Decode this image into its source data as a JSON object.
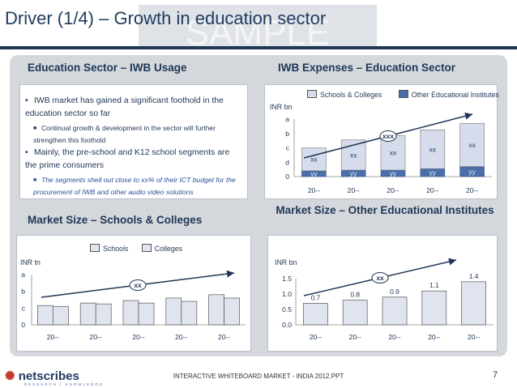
{
  "slide": {
    "title": "Driver (1/4) – Growth in education sector",
    "watermark": "SAMPLE",
    "footer": "INTERACTIVE WHITEBOARD MARKET - INDIA 2012.PPT",
    "page": "7",
    "logo": "netscribes",
    "logo_tagline": "RESEARCH | KNOWLEDGE"
  },
  "sections": {
    "usage_title": "Education Sector – IWB Usage",
    "expenses_title": "IWB Expenses – Education Sector",
    "schools_title": "Market Size – Schools & Colleges",
    "other_title": "Market Size – Other Educational Institutes"
  },
  "bullets": [
    {
      "level": 1,
      "text": "IWB market has gained a significant foothold in the education sector so far"
    },
    {
      "level": 2,
      "text": "Continual growth & development in the sector will further strengthen this foothold"
    },
    {
      "level": 1,
      "text": "Mainly, the pre-school and K12 school segments are the prime consumers"
    },
    {
      "level": 2,
      "text": "The segments shell out close to xx% of their ICT budget for the procurement of IWB and other audio video solutions"
    }
  ],
  "chart_data": [
    {
      "type": "bar",
      "stacked": true,
      "unit": "INR bn",
      "categories": [
        "20--",
        "20--",
        "20--",
        "20--",
        "20--"
      ],
      "y_ticks": [
        "0",
        "d",
        "c",
        "b",
        "a"
      ],
      "series": [
        {
          "name": "Schools & Colleges",
          "values": [
            1.6,
            2.1,
            2.4,
            2.7,
            3.0
          ],
          "labels": [
            "xx",
            "xx",
            "xx",
            "xx",
            "xx"
          ]
        },
        {
          "name": "Other Educational Institutes",
          "values": [
            0.4,
            0.45,
            0.45,
            0.55,
            0.7
          ],
          "labels": [
            "yy",
            "yy",
            "yy",
            "yy",
            "yy"
          ]
        }
      ],
      "ylim": [
        0,
        4
      ],
      "growth_label": "xxx",
      "legend": "top",
      "colors": {
        "Schools & Colleges": "#d6dceb",
        "Other Educational Institutes": "#4a6ea9"
      }
    },
    {
      "type": "bar",
      "unit": "INR tn",
      "categories": [
        "20--",
        "20--",
        "20--",
        "20--",
        "20--"
      ],
      "y_ticks": [
        "0",
        "c",
        "b",
        "a"
      ],
      "series": [
        {
          "name": "Schools",
          "values": [
            1.15,
            1.3,
            1.45,
            1.6,
            1.8
          ]
        },
        {
          "name": "Colleges",
          "values": [
            1.1,
            1.25,
            1.3,
            1.4,
            1.6
          ]
        }
      ],
      "ylim": [
        0,
        3
      ],
      "growth_label": "xx",
      "legend": "top",
      "colors": {
        "Schools": "#dfe4ef",
        "Colleges": "#dfe4ef"
      }
    },
    {
      "type": "bar",
      "unit": "INR bn",
      "categories": [
        "20--",
        "20--",
        "20--",
        "20--",
        "20--"
      ],
      "series": [
        {
          "name": "",
          "values": [
            0.7,
            0.8,
            0.9,
            1.1,
            1.4
          ]
        }
      ],
      "value_labels": [
        "0.7",
        "0.8",
        "0.9",
        "1.1",
        "1.4"
      ],
      "y_ticks": [
        "0.0",
        "0.5",
        "1.0",
        "1.5"
      ],
      "ylim": [
        0,
        1.5
      ],
      "growth_label": "xx",
      "colors": {
        "bars": "#dfe4ef"
      }
    }
  ]
}
